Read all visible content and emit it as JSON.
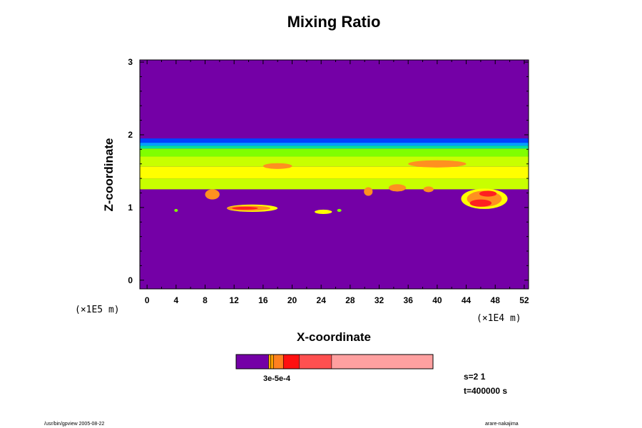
{
  "chart_data": {
    "type": "heatmap",
    "title": "Mixing Ratio",
    "xlabel": "X-coordinate",
    "ylabel": "Z-coordinate",
    "x_ticks": [
      "0",
      "4",
      "8",
      "12",
      "16",
      "20",
      "24",
      "28",
      "32",
      "36",
      "40",
      "44",
      "48",
      "52"
    ],
    "y_ticks": [
      "0",
      "1",
      "2",
      "3"
    ],
    "x_multiplier": "(×1E4 m)",
    "y_multiplier": "(×1E5 m)",
    "xlim": [
      -1,
      52.6
    ],
    "ylim": [
      -0.12,
      3.03
    ],
    "background_color": "#7400a6",
    "layers": [
      {
        "z0": 1.95,
        "z1": 1.89,
        "color": "#0040ff"
      },
      {
        "z0": 1.89,
        "z1": 1.85,
        "color": "#00a0ff"
      },
      {
        "z0": 1.85,
        "z1": 1.81,
        "color": "#00e0a0"
      },
      {
        "z0": 1.81,
        "z1": 1.7,
        "color": "#80ff00"
      },
      {
        "z0": 1.7,
        "z1": 1.56,
        "color": "#c8ff00"
      },
      {
        "z0": 1.56,
        "z1": 1.4,
        "color": "#ffff00"
      },
      {
        "z0": 1.4,
        "z1": 1.25,
        "color": "#c8ff00"
      }
    ],
    "blobs": [
      {
        "x": 9.0,
        "z": 1.18,
        "rx": 1.0,
        "rz": 0.07,
        "color": "#ff9020"
      },
      {
        "x": 14.5,
        "z": 0.99,
        "rx": 3.5,
        "rz": 0.05,
        "color": "#ffff00"
      },
      {
        "x": 14.0,
        "z": 0.99,
        "rx": 3.0,
        "rz": 0.035,
        "color": "#ff9020"
      },
      {
        "x": 13.5,
        "z": 0.99,
        "rx": 1.8,
        "rz": 0.02,
        "color": "#ff2020"
      },
      {
        "x": 24.3,
        "z": 0.94,
        "rx": 1.2,
        "rz": 0.03,
        "color": "#ffff00"
      },
      {
        "x": 26.5,
        "z": 0.96,
        "rx": 0.3,
        "rz": 0.02,
        "color": "#80ff00"
      },
      {
        "x": 4.0,
        "z": 0.96,
        "rx": 0.25,
        "rz": 0.02,
        "color": "#80ff00"
      },
      {
        "x": 30.5,
        "z": 1.22,
        "rx": 0.6,
        "rz": 0.06,
        "color": "#ff9020"
      },
      {
        "x": 34.5,
        "z": 1.27,
        "rx": 1.2,
        "rz": 0.05,
        "color": "#ff9020"
      },
      {
        "x": 38.8,
        "z": 1.25,
        "rx": 0.7,
        "rz": 0.04,
        "color": "#ff9020"
      },
      {
        "x": 46.5,
        "z": 1.12,
        "rx": 3.2,
        "rz": 0.14,
        "color": "#ffff00"
      },
      {
        "x": 46.5,
        "z": 1.12,
        "rx": 2.4,
        "rz": 0.11,
        "color": "#ff9020"
      },
      {
        "x": 46.0,
        "z": 1.06,
        "rx": 1.5,
        "rz": 0.05,
        "color": "#ff2020"
      },
      {
        "x": 47.0,
        "z": 1.19,
        "rx": 1.2,
        "rz": 0.04,
        "color": "#ff2020"
      },
      {
        "x": 40.0,
        "z": 1.6,
        "rx": 4.0,
        "rz": 0.05,
        "color": "#ff9020"
      },
      {
        "x": 18.0,
        "z": 1.57,
        "rx": 2.0,
        "rz": 0.04,
        "color": "#ff9020"
      }
    ],
    "colorbar": {
      "segments": [
        {
          "color": "#7400a6",
          "frac": 0.165
        },
        {
          "color": "#ffb000",
          "frac": 0.01
        },
        {
          "color": "#ffa000",
          "frac": 0.015
        },
        {
          "color": "#ff8020",
          "frac": 0.05
        },
        {
          "color": "#ff1010",
          "frac": 0.08
        },
        {
          "color": "#ff5050",
          "frac": 0.165
        },
        {
          "color": "#ffa0a0",
          "frac": 0.515
        }
      ],
      "labels": "3e-5e-4"
    },
    "info": {
      "s": "s=2 1",
      "t": "t=400000 s"
    }
  },
  "footer": {
    "left": "/usr/bin/gpview 2005-08-22",
    "right": "arare-nakajima"
  }
}
